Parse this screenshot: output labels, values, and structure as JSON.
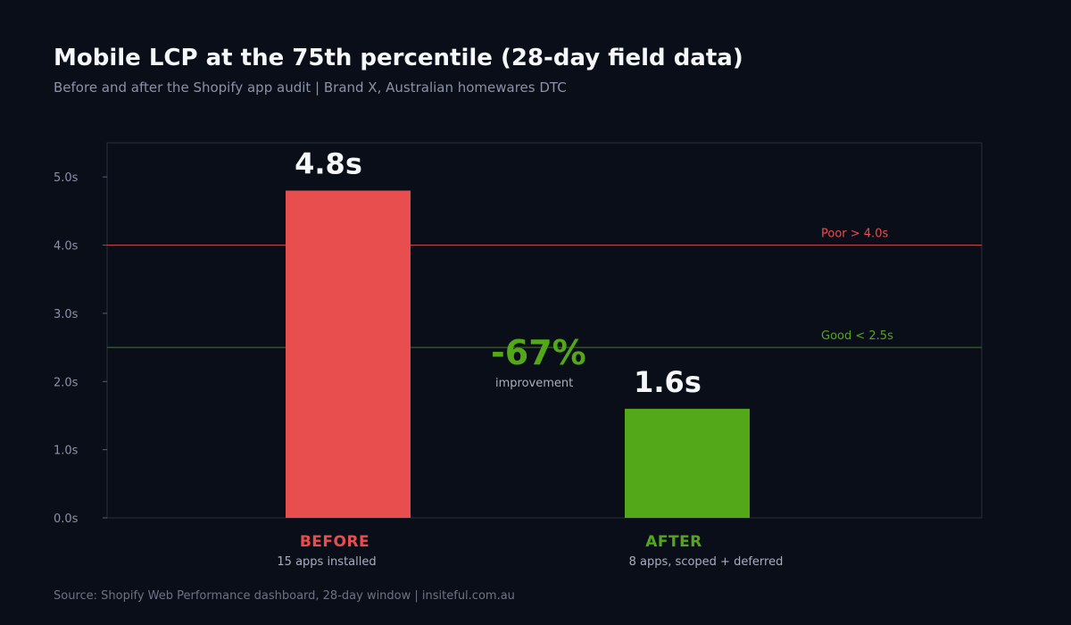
{
  "header": {
    "title": "Mobile LCP at the 75th percentile (28-day field data)",
    "subtitle": "Before and after the Shopify app audit | Brand X, Australian homewares DTC"
  },
  "footer": {
    "source": "Source: Shopify Web Performance dashboard, 28-day window  |  insiteful.com.au"
  },
  "colors": {
    "background": "#0a0e18",
    "before": "#e84e4e",
    "after": "#52a818",
    "poor_line": "#c04848",
    "good_line": "#3f7a1c",
    "axis_text": "#8a92a6",
    "plot_border": "#2a3040"
  },
  "chart_data": {
    "type": "bar",
    "categories": [
      "BEFORE",
      "AFTER"
    ],
    "category_subtitles": [
      "15 apps installed",
      "8 apps, scoped + deferred"
    ],
    "values": [
      4.8,
      1.6
    ],
    "value_labels": [
      "4.8s",
      "1.6s"
    ],
    "bar_colors": [
      "#e84e4e",
      "#52a818"
    ],
    "ylim": [
      0,
      5.5
    ],
    "yticks": [
      0,
      1,
      2,
      3,
      4,
      5
    ],
    "ytick_labels": [
      "0.0s",
      "1.0s",
      "2.0s",
      "3.0s",
      "4.0s",
      "5.0s"
    ],
    "grid": false,
    "thresholds": [
      {
        "label": "Poor > 4.0s",
        "value": 4.0,
        "color": "#e84e4e"
      },
      {
        "label": "Good < 2.5s",
        "value": 2.5,
        "color": "#52a818"
      }
    ],
    "annotation": {
      "value_text": "-67%",
      "caption": "improvement",
      "color": "#52a818"
    }
  }
}
